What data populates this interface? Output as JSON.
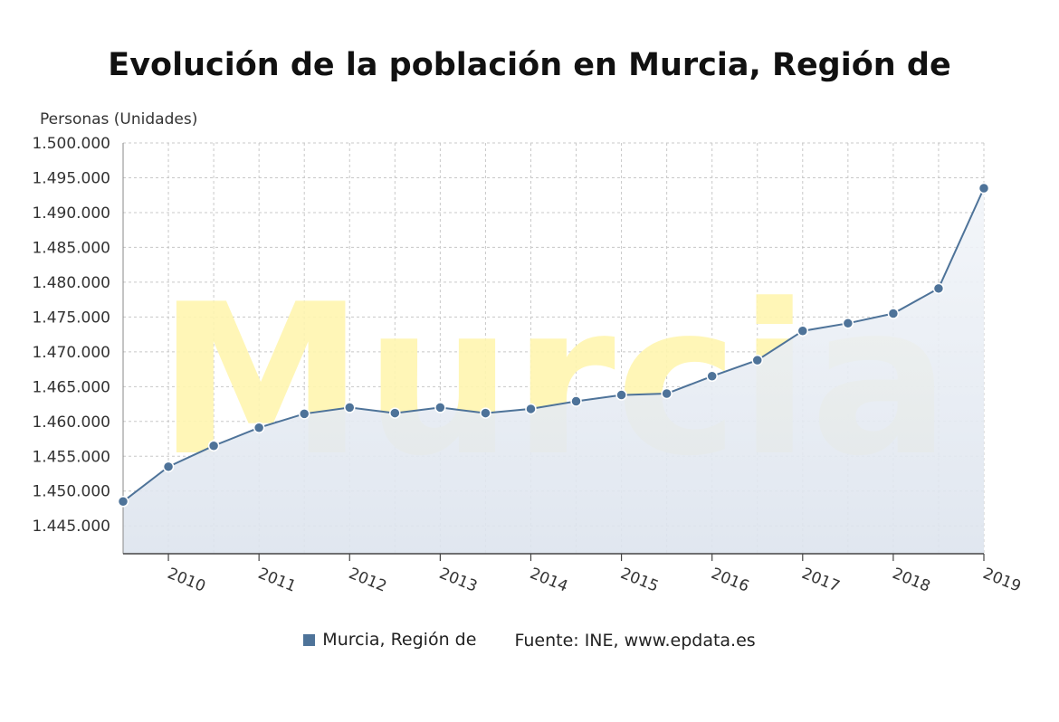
{
  "chart_data": {
    "type": "area",
    "title": "Evolución de la población en Murcia, Región de",
    "ylabel": "Personas (Unidades)",
    "xlabel": "",
    "watermark": "Murcia",
    "ylim": [
      1441000,
      1500000
    ],
    "ytick_labels": [
      "1.500.000",
      "1.495.000",
      "1.490.000",
      "1.485.000",
      "1.480.000",
      "1.475.000",
      "1.470.000",
      "1.465.000",
      "1.460.000",
      "1.455.000",
      "1.450.000",
      "1.445.000"
    ],
    "ytick_values": [
      1500000,
      1495000,
      1490000,
      1485000,
      1480000,
      1475000,
      1470000,
      1465000,
      1460000,
      1455000,
      1450000,
      1445000
    ],
    "xtick_labels": [
      "2010",
      "2011",
      "2012",
      "2013",
      "2014",
      "2015",
      "2016",
      "2017",
      "2018",
      "2019"
    ],
    "xtick_values": [
      2010,
      2011,
      2012,
      2013,
      2014,
      2015,
      2016,
      2017,
      2018,
      2019
    ],
    "xlim": [
      2009.5,
      2019
    ],
    "grid": true,
    "legend_position": "bottom",
    "series": [
      {
        "name": "Murcia, Región de",
        "color": "#4e7399",
        "x": [
          2009.5,
          2010,
          2010.5,
          2011,
          2011.5,
          2012,
          2012.5,
          2013,
          2013.5,
          2014,
          2014.5,
          2015,
          2015.5,
          2016,
          2016.5,
          2017,
          2017.5,
          2018,
          2018.5,
          2019
        ],
        "values": [
          1448500,
          1453500,
          1456500,
          1459100,
          1461100,
          1462000,
          1461200,
          1462000,
          1461200,
          1461800,
          1462900,
          1463800,
          1464000,
          1466500,
          1468800,
          1473000,
          1474100,
          1475500,
          1479100,
          1493500
        ]
      }
    ],
    "source": "Fuente: INE, www.epdata.es"
  }
}
